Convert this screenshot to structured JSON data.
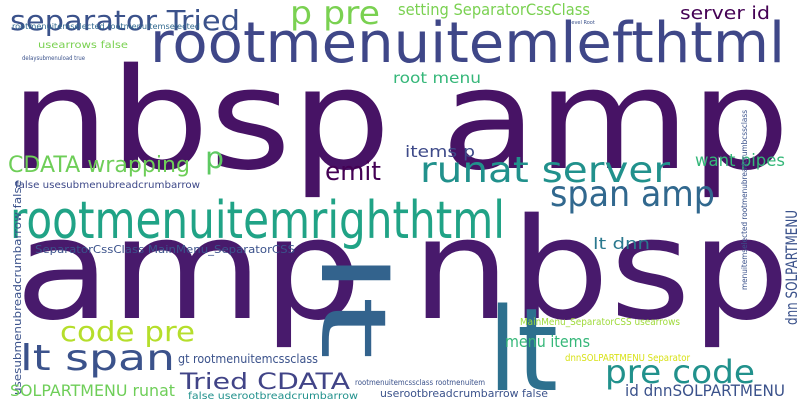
{
  "words": [
    "nbsp amp",
    "amp nbsp",
    "rootmenuitemlefthtml",
    "rootmenuitemrighthtml",
    "lt",
    "lt",
    "separator Tried",
    "p pre",
    "setting SeparatorCssClass",
    "server id",
    "root menu",
    "CDATA wrapping",
    "p",
    "emit",
    "items p",
    "runat server",
    "want pipes",
    "span amp",
    "lt dnn",
    "SeparatorCssClass MainMenu_SeparatorCSS",
    "false usesubmenubreadcrumbarrow",
    "usesubmenubreadcrumbarrow false",
    "code pre",
    "lt span",
    "SOLPARTMENU runat",
    "gt rootmenuitemcssclass",
    "Tried CDATA",
    "false userootbreadcrumbarrow",
    "menu items",
    "pre code",
    "id dnnSOLPARTMENU",
    "dnn SOLPARTMENU",
    "MainMenu_SeparatorCSS usearrows",
    "dnnSOLPARTMENU Separator",
    "userootbreadcrumbarrow false",
    "rootmenuitemcssclass rootmenuitem",
    "usearrows false",
    "delaysubmenuload true",
    "rootmenuitemselected rootmenuitemselected",
    "level Root",
    "menuitemselected rootmenubreadcrumbcssclass"
  ]
}
